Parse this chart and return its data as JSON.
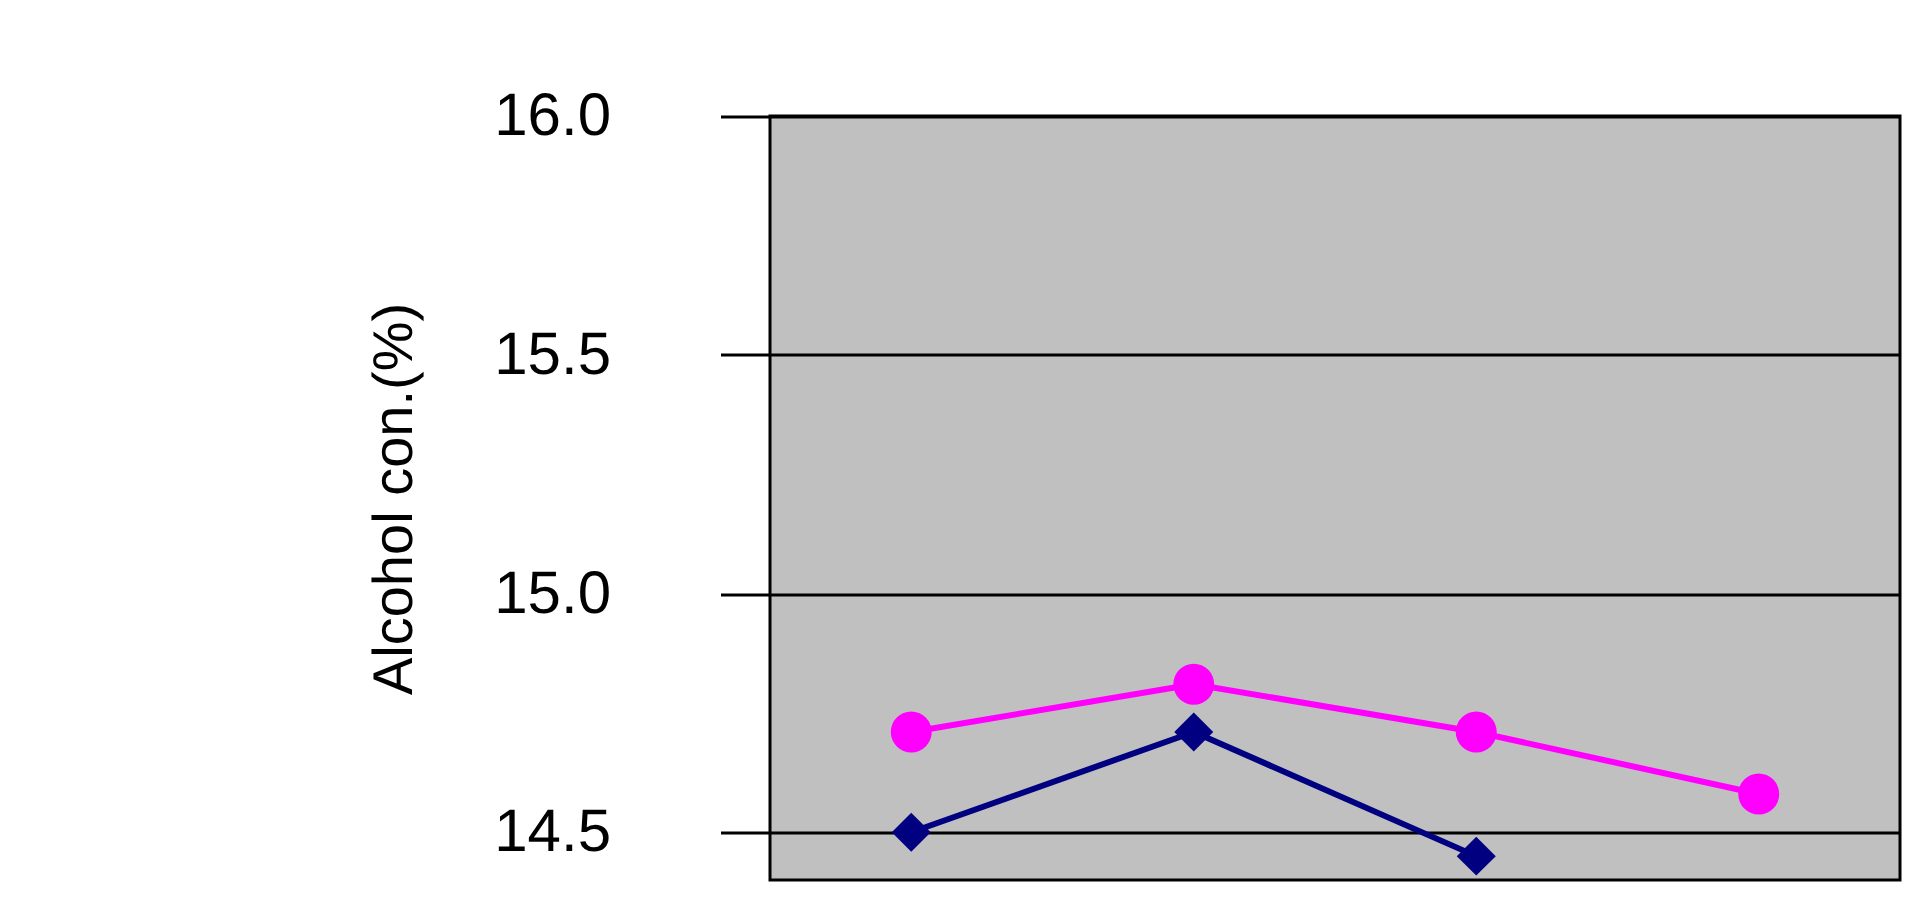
{
  "chart_data": {
    "type": "line",
    "ylabel": "Alcohol con.(%)",
    "categories": [
      null,
      null,
      null,
      null
    ],
    "series": [
      {
        "color": "#ff00ff",
        "marker": "circle",
        "values": [
          14.71,
          14.81,
          14.71,
          14.58
        ]
      },
      {
        "color": "#000080",
        "marker": "diamond",
        "values": [
          14.5,
          14.71,
          14.45,
          null
        ]
      }
    ],
    "ylim": [
      14.4,
      16.0
    ],
    "yticks": [
      {
        "value": 14.5,
        "label": "14.5"
      },
      {
        "value": 15.0,
        "label": "15.0"
      },
      {
        "value": 15.5,
        "label": "15.5"
      },
      {
        "value": 16.0,
        "label": "16.0"
      }
    ],
    "grid": "y",
    "tick_labels": "y",
    "line_style": "solid"
  }
}
